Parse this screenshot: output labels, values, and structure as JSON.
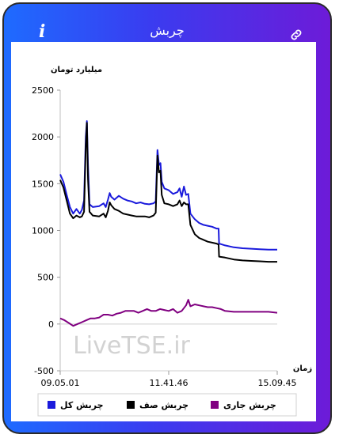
{
  "header": {
    "title": "چربش",
    "info_icon": "info-icon",
    "link_icon": "link-icon",
    "info_glyph": "i"
  },
  "colors": {
    "frame_start": "#1e6bff",
    "frame_end": "#6d1bd8",
    "total": "#1a1adc",
    "queue": "#000000",
    "current": "#800080"
  },
  "watermark": "LiveTSE.ir",
  "chart_data": {
    "type": "line",
    "ylabel": "میلیارد تومان",
    "xlabel": "زمان",
    "ylim": [
      -500,
      2500
    ],
    "yticks": [
      "2500",
      "2000",
      "1500",
      "1000",
      "500",
      "0",
      "-500"
    ],
    "ytick_values": [
      2500,
      2000,
      1500,
      1000,
      500,
      0,
      -500
    ],
    "xticks": [
      "09.05.01",
      "11.41.46",
      "15.09.45"
    ],
    "legend": {
      "placement": "bottom"
    },
    "series": [
      {
        "name": "چربش کل",
        "color": "#1a1adc",
        "points": [
          [
            0,
            1600
          ],
          [
            1.5,
            1520
          ],
          [
            3,
            1380
          ],
          [
            4.5,
            1250
          ],
          [
            6,
            1180
          ],
          [
            7.5,
            1230
          ],
          [
            9,
            1180
          ],
          [
            10,
            1220
          ],
          [
            11,
            1320
          ],
          [
            11.8,
            2000
          ],
          [
            12.3,
            2170
          ],
          [
            12.8,
            1700
          ],
          [
            13.5,
            1280
          ],
          [
            15,
            1250
          ],
          [
            18,
            1260
          ],
          [
            20,
            1290
          ],
          [
            21,
            1250
          ],
          [
            22,
            1330
          ],
          [
            22.8,
            1400
          ],
          [
            23.5,
            1360
          ],
          [
            25,
            1330
          ],
          [
            27,
            1370
          ],
          [
            29,
            1340
          ],
          [
            31,
            1320
          ],
          [
            33,
            1310
          ],
          [
            35,
            1290
          ],
          [
            37,
            1300
          ],
          [
            39,
            1285
          ],
          [
            41,
            1280
          ],
          [
            43,
            1290
          ],
          [
            44,
            1310
          ],
          [
            44.8,
            1860
          ],
          [
            45.5,
            1700
          ],
          [
            46.2,
            1720
          ],
          [
            46.8,
            1520
          ],
          [
            48,
            1450
          ],
          [
            50,
            1430
          ],
          [
            52,
            1390
          ],
          [
            54,
            1410
          ],
          [
            55,
            1450
          ],
          [
            56,
            1360
          ],
          [
            57,
            1470
          ],
          [
            58,
            1380
          ],
          [
            59,
            1390
          ],
          [
            60,
            1180
          ],
          [
            62,
            1120
          ],
          [
            64,
            1080
          ],
          [
            66,
            1060
          ],
          [
            68,
            1050
          ],
          [
            70,
            1040
          ],
          [
            72,
            1020
          ],
          [
            73,
            1020
          ],
          [
            73.2,
            860
          ],
          [
            76,
            840
          ],
          [
            80,
            820
          ],
          [
            84,
            810
          ],
          [
            88,
            805
          ],
          [
            92,
            800
          ],
          [
            96,
            795
          ],
          [
            100,
            795
          ]
        ]
      },
      {
        "name": "چربش صف",
        "color": "#000000",
        "points": [
          [
            0,
            1540
          ],
          [
            1.5,
            1460
          ],
          [
            3,
            1320
          ],
          [
            4.5,
            1180
          ],
          [
            6,
            1130
          ],
          [
            7.5,
            1160
          ],
          [
            9,
            1140
          ],
          [
            10,
            1150
          ],
          [
            11,
            1200
          ],
          [
            11.8,
            1900
          ],
          [
            12.3,
            2150
          ],
          [
            12.8,
            1550
          ],
          [
            13.5,
            1200
          ],
          [
            15,
            1160
          ],
          [
            18,
            1150
          ],
          [
            20,
            1180
          ],
          [
            21,
            1140
          ],
          [
            22,
            1210
          ],
          [
            22.8,
            1300
          ],
          [
            23.5,
            1270
          ],
          [
            25,
            1230
          ],
          [
            27,
            1210
          ],
          [
            29,
            1180
          ],
          [
            31,
            1170
          ],
          [
            33,
            1160
          ],
          [
            35,
            1150
          ],
          [
            37,
            1150
          ],
          [
            39,
            1150
          ],
          [
            41,
            1140
          ],
          [
            43,
            1160
          ],
          [
            44,
            1190
          ],
          [
            44.8,
            1800
          ],
          [
            45.5,
            1620
          ],
          [
            46.2,
            1640
          ],
          [
            46.8,
            1380
          ],
          [
            48,
            1290
          ],
          [
            50,
            1280
          ],
          [
            52,
            1260
          ],
          [
            54,
            1280
          ],
          [
            55,
            1320
          ],
          [
            56,
            1260
          ],
          [
            57,
            1300
          ],
          [
            58,
            1280
          ],
          [
            59,
            1280
          ],
          [
            60,
            1060
          ],
          [
            62,
            960
          ],
          [
            64,
            920
          ],
          [
            66,
            900
          ],
          [
            68,
            880
          ],
          [
            70,
            870
          ],
          [
            72,
            860
          ],
          [
            73,
            850
          ],
          [
            73.2,
            720
          ],
          [
            76,
            710
          ],
          [
            80,
            690
          ],
          [
            84,
            680
          ],
          [
            88,
            675
          ],
          [
            92,
            670
          ],
          [
            96,
            665
          ],
          [
            100,
            665
          ]
        ]
      },
      {
        "name": "چربش جاری",
        "color": "#800080",
        "points": [
          [
            0,
            60
          ],
          [
            2,
            40
          ],
          [
            4,
            10
          ],
          [
            6,
            -20
          ],
          [
            8,
            0
          ],
          [
            10,
            20
          ],
          [
            12,
            40
          ],
          [
            14,
            60
          ],
          [
            16,
            60
          ],
          [
            18,
            70
          ],
          [
            20,
            100
          ],
          [
            22,
            100
          ],
          [
            24,
            90
          ],
          [
            26,
            110
          ],
          [
            28,
            120
          ],
          [
            30,
            140
          ],
          [
            32,
            140
          ],
          [
            34,
            140
          ],
          [
            36,
            120
          ],
          [
            38,
            140
          ],
          [
            40,
            160
          ],
          [
            42,
            140
          ],
          [
            44,
            140
          ],
          [
            46,
            160
          ],
          [
            48,
            150
          ],
          [
            50,
            140
          ],
          [
            52,
            160
          ],
          [
            54,
            120
          ],
          [
            56,
            140
          ],
          [
            58,
            200
          ],
          [
            59,
            260
          ],
          [
            60,
            190
          ],
          [
            62,
            210
          ],
          [
            64,
            200
          ],
          [
            66,
            190
          ],
          [
            68,
            180
          ],
          [
            70,
            180
          ],
          [
            72,
            170
          ],
          [
            74,
            160
          ],
          [
            76,
            140
          ],
          [
            80,
            130
          ],
          [
            84,
            130
          ],
          [
            88,
            130
          ],
          [
            92,
            130
          ],
          [
            96,
            130
          ],
          [
            100,
            120
          ]
        ]
      }
    ]
  }
}
